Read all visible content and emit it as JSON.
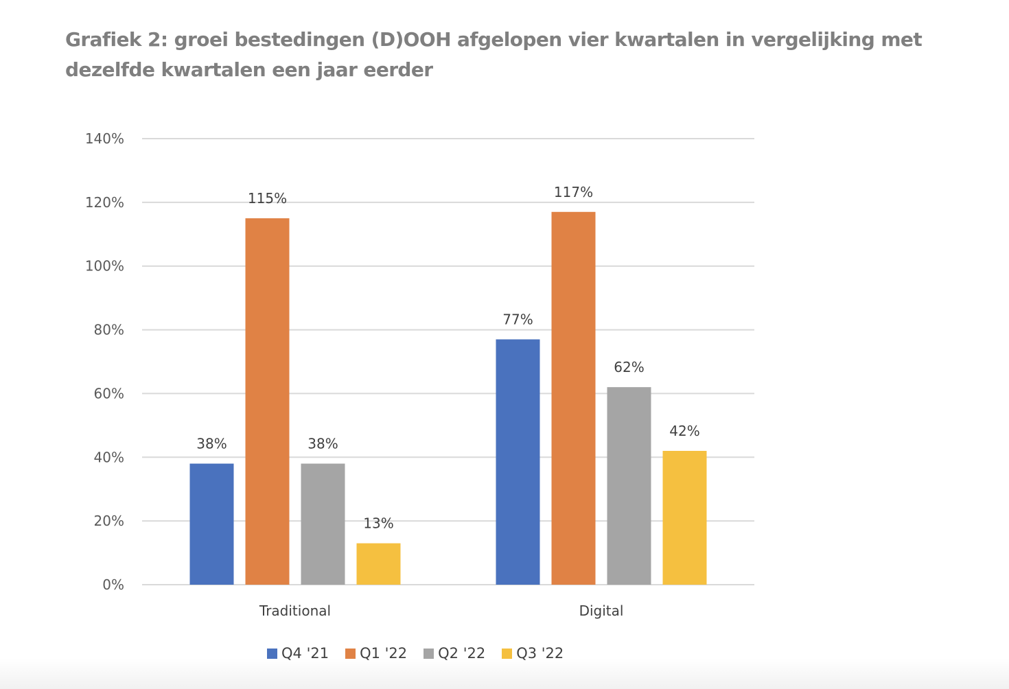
{
  "chart_data": {
    "type": "bar",
    "title": "Grafiek 2: groei bestedingen (D)OOH afgelopen vier kwartalen in vergelijking met dezelfde kwartalen een jaar eerder",
    "categories": [
      "Traditional",
      "Digital"
    ],
    "series": [
      {
        "name": "Q4 '21",
        "color": "#4a72be",
        "values": [
          38,
          77
        ],
        "labels": [
          "38%",
          "77%"
        ]
      },
      {
        "name": "Q1 '22",
        "color": "#e08245",
        "values": [
          115,
          117
        ],
        "labels": [
          "115%",
          "117%"
        ]
      },
      {
        "name": "Q2 '22",
        "color": "#a5a5a5",
        "values": [
          38,
          62
        ],
        "labels": [
          "38%",
          "62%"
        ]
      },
      {
        "name": "Q3 '22",
        "color": "#f5c040",
        "values": [
          13,
          42
        ],
        "labels": [
          "13%",
          "42%"
        ]
      }
    ],
    "xlabel": "",
    "ylabel": "",
    "ylim": [
      0,
      140
    ],
    "yticks": [
      0,
      20,
      40,
      60,
      80,
      100,
      120,
      140
    ],
    "ytick_labels": [
      "0%",
      "20%",
      "40%",
      "60%",
      "80%",
      "100%",
      "120%",
      "140%"
    ],
    "grid": true,
    "legend_position": "bottom"
  }
}
